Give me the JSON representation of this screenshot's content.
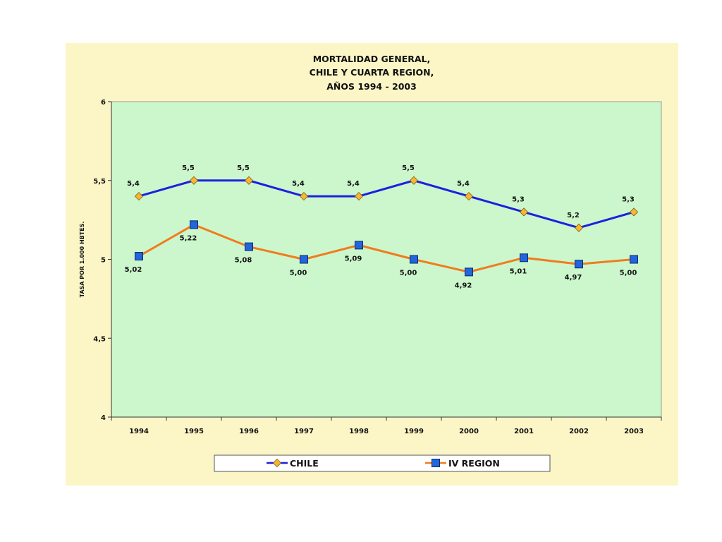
{
  "chart_data": {
    "type": "line",
    "title": [
      "MORTALIDAD GENERAL,",
      "CHILE Y CUARTA REGION,",
      "AÑOS 1994 - 2003"
    ],
    "ylabel": "TASA POR 1.000 HBTES.",
    "xlabel": "",
    "categories": [
      "1994",
      "1995",
      "1996",
      "1997",
      "1998",
      "1999",
      "2000",
      "2001",
      "2002",
      "2003"
    ],
    "ylim": [
      4,
      6
    ],
    "yticks": [
      4,
      4.5,
      5,
      5.5,
      6
    ],
    "ytick_labels": [
      "4",
      "4,5",
      "5",
      "5,5",
      "6"
    ],
    "grid": false,
    "legend_position": "bottom",
    "plot_background": "#ccf7cc",
    "panel_background": "#fcf6c6",
    "series": [
      {
        "name": "CHILE",
        "values": [
          5.4,
          5.5,
          5.5,
          5.4,
          5.4,
          5.5,
          5.4,
          5.3,
          5.2,
          5.3
        ],
        "labels": [
          "5,4",
          "5,5",
          "5,5",
          "5,4",
          "5,4",
          "5,5",
          "5,4",
          "5,3",
          "5,2",
          "5,3"
        ],
        "line_color": "#1f1fe0",
        "marker_color": "#f7b731",
        "marker": "diamond",
        "label_position": "above"
      },
      {
        "name": "IV REGION",
        "values": [
          5.02,
          5.22,
          5.08,
          5.0,
          5.09,
          5.0,
          4.92,
          5.01,
          4.97,
          5.0
        ],
        "labels": [
          "5,02",
          "5,22",
          "5,08",
          "5,00",
          "5,09",
          "5,00",
          "4,92",
          "5,01",
          "4,97",
          "5,00"
        ],
        "line_color": "#f07c1e",
        "marker_color": "#2266dd",
        "marker": "square",
        "label_position": "below"
      }
    ]
  }
}
